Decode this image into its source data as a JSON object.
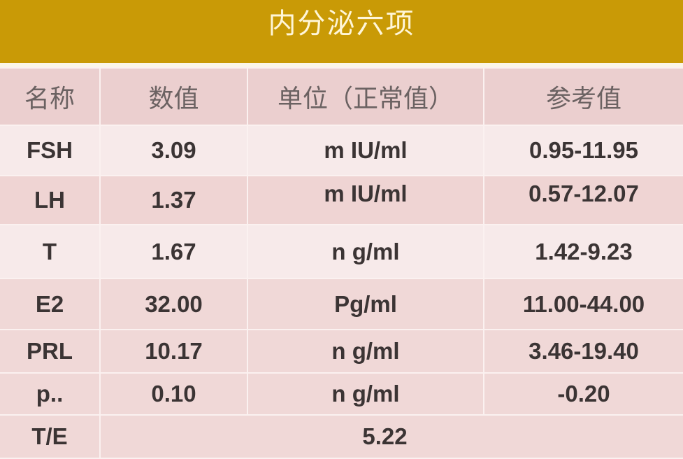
{
  "title": "内分泌六项",
  "columns": [
    "名称",
    "数值",
    "单位（正常值）",
    "参考值"
  ],
  "rows": [
    {
      "name": "FSH",
      "value": "3.09",
      "unit": "m IU/ml",
      "reference": "0.95-11.95"
    },
    {
      "name": "LH",
      "value": "1.37",
      "unit": "m IU/ml",
      "reference": "0.57-12.07"
    },
    {
      "name": "T",
      "value": "1.67",
      "unit": "n g/ml",
      "reference": "1.42-9.23"
    },
    {
      "name": "E2",
      "value": "32.00",
      "unit": "Pg/ml",
      "reference": "11.00-44.00"
    },
    {
      "name": "PRL",
      "value": "10.17",
      "unit": "n g/ml",
      "reference": "3.46-19.40"
    },
    {
      "name": "p..",
      "value": "0.10",
      "unit": "n g/ml",
      "reference": "-0.20"
    }
  ],
  "ratio": {
    "name": "T/E",
    "value": "5.22"
  },
  "colors": {
    "banner": "#c99a06",
    "row_light": "#f7eaea",
    "row_dark": "#efd4d3",
    "text": "#3b3434"
  }
}
